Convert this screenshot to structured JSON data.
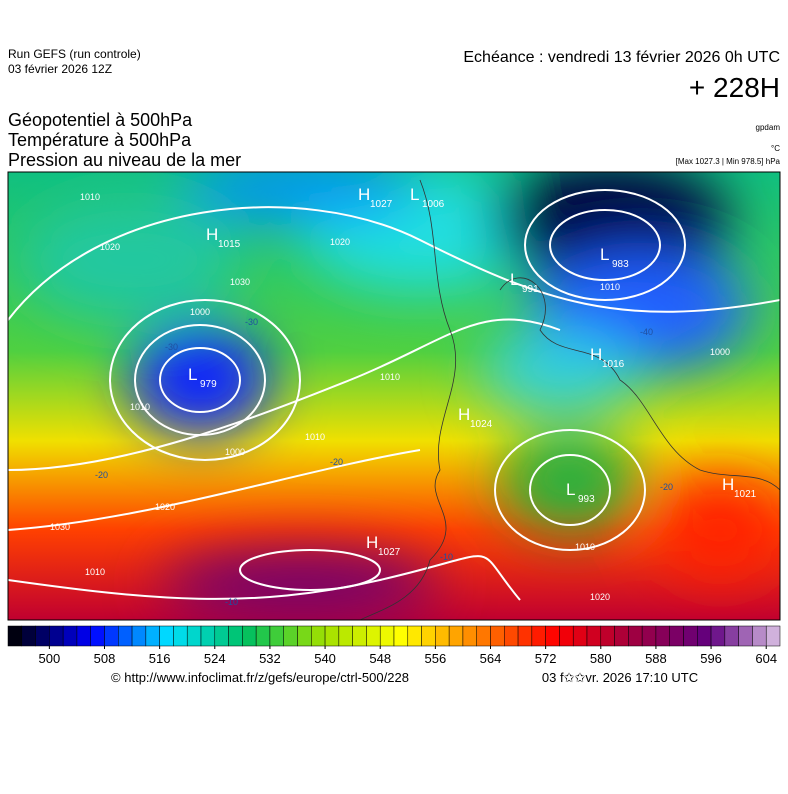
{
  "header": {
    "run": "Run GEFS (run controle)",
    "run_date": "03 février 2026 12Z",
    "valid": "Echéance : vendredi 13 février 2026 0h UTC",
    "lead": "+ 228H",
    "titles": [
      "Géopotentiel à 500hPa",
      "Température à 500hPa",
      "Pression au niveau de la mer"
    ],
    "units": [
      "gpdam",
      "°C",
      "[Max 1027.3 | Min 978.5] hPa"
    ]
  },
  "map": {
    "centers": [
      {
        "letter": "H",
        "value": "1027"
      },
      {
        "letter": "L",
        "value": "1006"
      },
      {
        "letter": "H",
        "value": "1015"
      },
      {
        "letter": "L",
        "value": "983"
      },
      {
        "letter": "L",
        "value": "991"
      },
      {
        "letter": "H",
        "value": "1016"
      },
      {
        "letter": "L",
        "value": "979"
      },
      {
        "letter": "H",
        "value": "1024"
      },
      {
        "letter": "L",
        "value": "993"
      },
      {
        "letter": "H",
        "value": "1021"
      },
      {
        "letter": "H",
        "value": "1027"
      }
    ],
    "isobar_labels": [
      "1010",
      "1020",
      "1030",
      "1020",
      "1000",
      "1010",
      "1010",
      "1000",
      "1010",
      "1020",
      "1030",
      "1010",
      "1010",
      "1000",
      "1010",
      "1020"
    ],
    "temperature_labels": [
      "-40",
      "-30",
      "-30",
      "-20",
      "-20",
      "-20",
      "-10",
      "-10"
    ]
  },
  "colorbar": {
    "lim": [
      494,
      606
    ],
    "step": 2,
    "ticks": [
      500,
      508,
      516,
      524,
      532,
      540,
      548,
      556,
      564,
      572,
      580,
      588,
      596,
      604
    ],
    "stops": [
      "#000010",
      "#0000ff",
      "#00e0ff",
      "#00c060",
      "#a0e000",
      "#ffff00",
      "#ff8000",
      "#ff0000",
      "#a00040",
      "#600080",
      "#e8d8f0"
    ]
  },
  "footer": {
    "source": "© http://www.infoclimat.fr/z/gefs/europe/ctrl-500/228",
    "generated": "03 f✩✩vr. 2026 17:10 UTC"
  }
}
